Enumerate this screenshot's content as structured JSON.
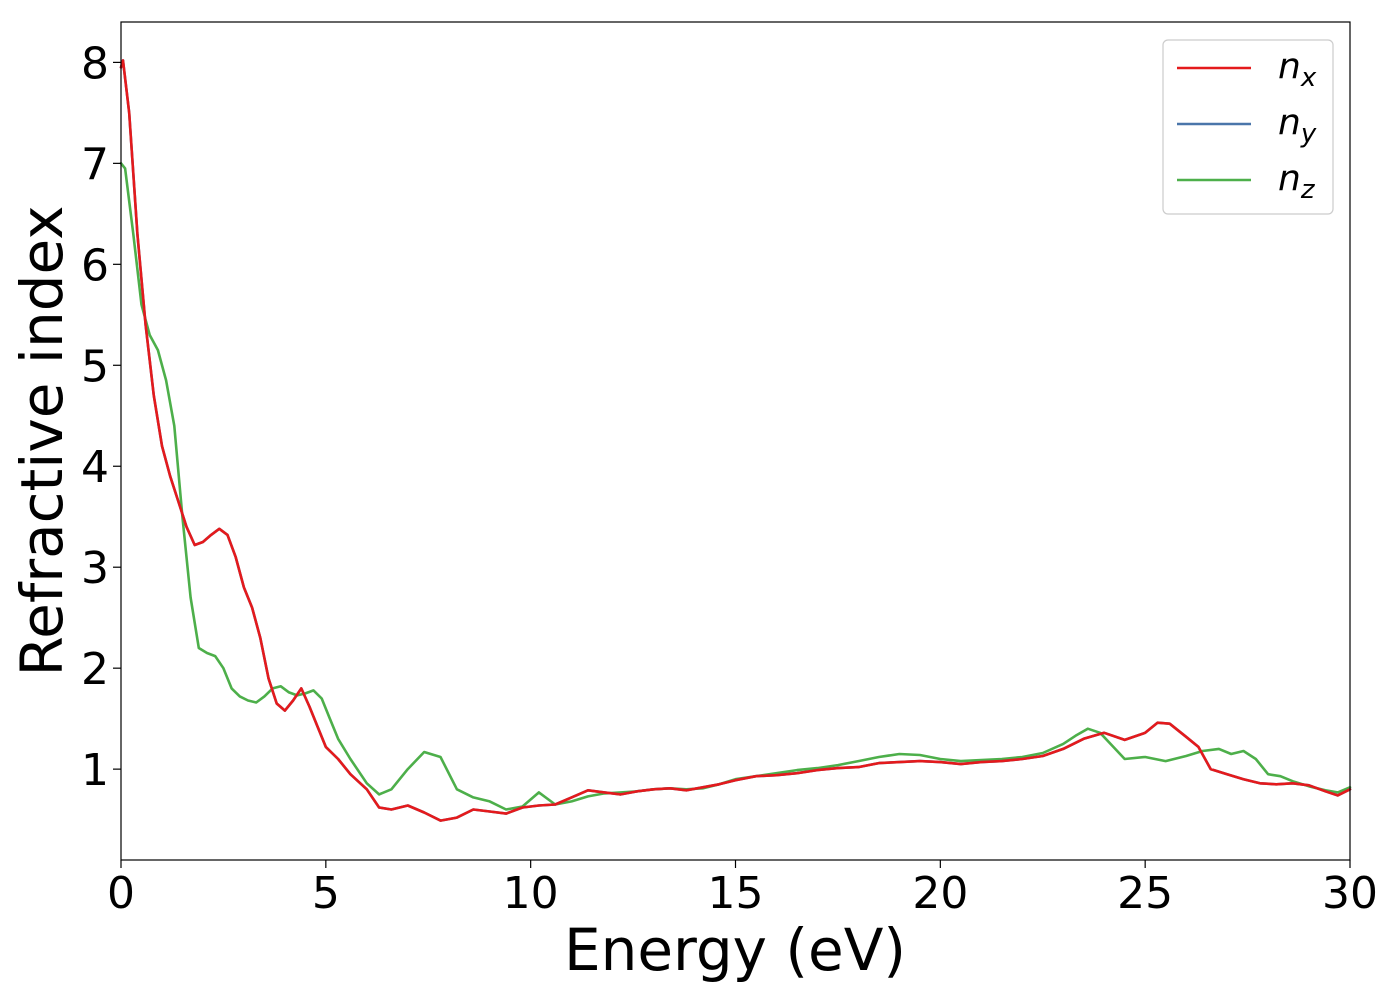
{
  "chart_data": {
    "type": "line",
    "title": "",
    "xlabel": "Energy (eV)",
    "ylabel": "Refractive index",
    "xlim": [
      0,
      30
    ],
    "ylim": [
      0.1,
      8.4
    ],
    "xticks": [
      0,
      5,
      10,
      15,
      20,
      25,
      30
    ],
    "yticks": [
      1,
      2,
      3,
      4,
      5,
      6,
      7,
      8
    ],
    "grid": false,
    "legend_position": "top-right",
    "series": [
      {
        "name": "n_x",
        "legend_base": "n",
        "legend_sub": "x",
        "color": "#e41a1c",
        "x": [
          0,
          0.05,
          0.2,
          0.4,
          0.6,
          0.8,
          1.0,
          1.2,
          1.4,
          1.6,
          1.8,
          2.0,
          2.2,
          2.4,
          2.6,
          2.8,
          3.0,
          3.2,
          3.4,
          3.6,
          3.8,
          4.0,
          4.2,
          4.4,
          4.6,
          4.8,
          5.0,
          5.3,
          5.6,
          6.0,
          6.3,
          6.6,
          7.0,
          7.4,
          7.8,
          8.2,
          8.6,
          9.0,
          9.4,
          9.8,
          10.2,
          10.6,
          11.0,
          11.4,
          11.8,
          12.2,
          12.6,
          13.0,
          13.4,
          13.8,
          14.2,
          14.6,
          15.0,
          15.5,
          16.0,
          16.5,
          17.0,
          17.5,
          18.0,
          18.5,
          19.0,
          19.5,
          20.0,
          20.5,
          21.0,
          21.5,
          22.0,
          22.5,
          23.0,
          23.5,
          24.0,
          24.5,
          25.0,
          25.3,
          25.6,
          26.0,
          26.3,
          26.6,
          27.0,
          27.4,
          27.8,
          28.2,
          28.6,
          29.0,
          29.4,
          29.7,
          30.0
        ],
        "y": [
          7.95,
          8.02,
          7.5,
          6.3,
          5.4,
          4.7,
          4.2,
          3.9,
          3.65,
          3.4,
          3.22,
          3.25,
          3.32,
          3.38,
          3.32,
          3.1,
          2.8,
          2.6,
          2.3,
          1.9,
          1.65,
          1.58,
          1.68,
          1.8,
          1.62,
          1.42,
          1.22,
          1.1,
          0.95,
          0.8,
          0.62,
          0.6,
          0.64,
          0.57,
          0.49,
          0.52,
          0.6,
          0.58,
          0.56,
          0.62,
          0.64,
          0.65,
          0.72,
          0.79,
          0.77,
          0.75,
          0.78,
          0.8,
          0.81,
          0.79,
          0.82,
          0.85,
          0.89,
          0.93,
          0.94,
          0.96,
          0.99,
          1.01,
          1.02,
          1.06,
          1.07,
          1.08,
          1.07,
          1.05,
          1.07,
          1.08,
          1.1,
          1.13,
          1.2,
          1.3,
          1.36,
          1.29,
          1.36,
          1.46,
          1.45,
          1.32,
          1.22,
          1.0,
          0.95,
          0.9,
          0.86,
          0.85,
          0.86,
          0.84,
          0.78,
          0.74,
          0.8
        ]
      },
      {
        "name": "n_y",
        "legend_base": "n",
        "legend_sub": "y",
        "color": "#4a76aa",
        "x": [
          0,
          0.05,
          0.2,
          0.4,
          0.6,
          0.8,
          1.0,
          1.2,
          1.4,
          1.6,
          1.8,
          2.0,
          2.2,
          2.4,
          2.6,
          2.8,
          3.0,
          3.2,
          3.4,
          3.6,
          3.8,
          4.0,
          4.2,
          4.4,
          4.6,
          4.8,
          5.0,
          5.3,
          5.6,
          6.0,
          6.3,
          6.6,
          7.0,
          7.4,
          7.8,
          8.2,
          8.6,
          9.0,
          9.4,
          9.8,
          10.2,
          10.6,
          11.0,
          11.4,
          11.8,
          12.2,
          12.6,
          13.0,
          13.4,
          13.8,
          14.2,
          14.6,
          15.0,
          15.5,
          16.0,
          16.5,
          17.0,
          17.5,
          18.0,
          18.5,
          19.0,
          19.5,
          20.0,
          20.5,
          21.0,
          21.5,
          22.0,
          22.5,
          23.0,
          23.5,
          24.0,
          24.5,
          25.0,
          25.3,
          25.6,
          26.0,
          26.3,
          26.6,
          27.0,
          27.4,
          27.8,
          28.2,
          28.6,
          29.0,
          29.4,
          29.7,
          30.0
        ],
        "y": [
          7.95,
          8.02,
          7.5,
          6.3,
          5.4,
          4.7,
          4.2,
          3.9,
          3.65,
          3.4,
          3.22,
          3.25,
          3.32,
          3.38,
          3.32,
          3.1,
          2.8,
          2.6,
          2.3,
          1.9,
          1.65,
          1.58,
          1.68,
          1.8,
          1.62,
          1.42,
          1.22,
          1.1,
          0.95,
          0.8,
          0.62,
          0.6,
          0.64,
          0.57,
          0.49,
          0.52,
          0.6,
          0.58,
          0.56,
          0.62,
          0.64,
          0.65,
          0.72,
          0.79,
          0.77,
          0.75,
          0.78,
          0.8,
          0.81,
          0.79,
          0.82,
          0.85,
          0.89,
          0.93,
          0.94,
          0.96,
          0.99,
          1.01,
          1.02,
          1.06,
          1.07,
          1.08,
          1.07,
          1.05,
          1.07,
          1.08,
          1.1,
          1.13,
          1.2,
          1.3,
          1.36,
          1.29,
          1.36,
          1.46,
          1.45,
          1.32,
          1.22,
          1.0,
          0.95,
          0.9,
          0.86,
          0.85,
          0.86,
          0.84,
          0.78,
          0.74,
          0.8
        ]
      },
      {
        "name": "n_z",
        "legend_base": "n",
        "legend_sub": "z",
        "color": "#4daf4a",
        "x": [
          0,
          0.1,
          0.3,
          0.5,
          0.7,
          0.9,
          1.1,
          1.3,
          1.5,
          1.7,
          1.9,
          2.1,
          2.3,
          2.5,
          2.7,
          2.9,
          3.1,
          3.3,
          3.5,
          3.7,
          3.9,
          4.1,
          4.3,
          4.5,
          4.7,
          4.9,
          5.1,
          5.3,
          5.6,
          6.0,
          6.3,
          6.6,
          7.0,
          7.4,
          7.8,
          8.2,
          8.6,
          9.0,
          9.4,
          9.8,
          10.2,
          10.6,
          11.0,
          11.4,
          11.8,
          12.2,
          12.6,
          13.0,
          13.4,
          13.8,
          14.2,
          14.6,
          15.0,
          15.5,
          16.0,
          16.5,
          17.0,
          17.5,
          18.0,
          18.5,
          19.0,
          19.5,
          20.0,
          20.5,
          21.0,
          21.5,
          22.0,
          22.5,
          23.0,
          23.3,
          23.6,
          23.9,
          24.2,
          24.5,
          25.0,
          25.5,
          26.0,
          26.4,
          26.8,
          27.1,
          27.4,
          27.7,
          28.0,
          28.3,
          28.6,
          29.0,
          29.4,
          29.7,
          30.0
        ],
        "y": [
          7.0,
          6.95,
          6.3,
          5.6,
          5.3,
          5.15,
          4.85,
          4.4,
          3.5,
          2.7,
          2.2,
          2.15,
          2.12,
          2.0,
          1.8,
          1.72,
          1.68,
          1.66,
          1.72,
          1.8,
          1.82,
          1.76,
          1.73,
          1.75,
          1.78,
          1.7,
          1.5,
          1.3,
          1.1,
          0.86,
          0.75,
          0.8,
          1.0,
          1.17,
          1.12,
          0.8,
          0.72,
          0.68,
          0.6,
          0.63,
          0.77,
          0.65,
          0.68,
          0.73,
          0.76,
          0.77,
          0.78,
          0.8,
          0.81,
          0.8,
          0.81,
          0.85,
          0.9,
          0.93,
          0.96,
          0.99,
          1.01,
          1.04,
          1.08,
          1.12,
          1.15,
          1.14,
          1.1,
          1.08,
          1.09,
          1.1,
          1.12,
          1.16,
          1.25,
          1.33,
          1.4,
          1.36,
          1.23,
          1.1,
          1.12,
          1.08,
          1.13,
          1.18,
          1.2,
          1.15,
          1.18,
          1.1,
          0.95,
          0.93,
          0.88,
          0.83,
          0.79,
          0.77,
          0.82
        ]
      }
    ]
  }
}
